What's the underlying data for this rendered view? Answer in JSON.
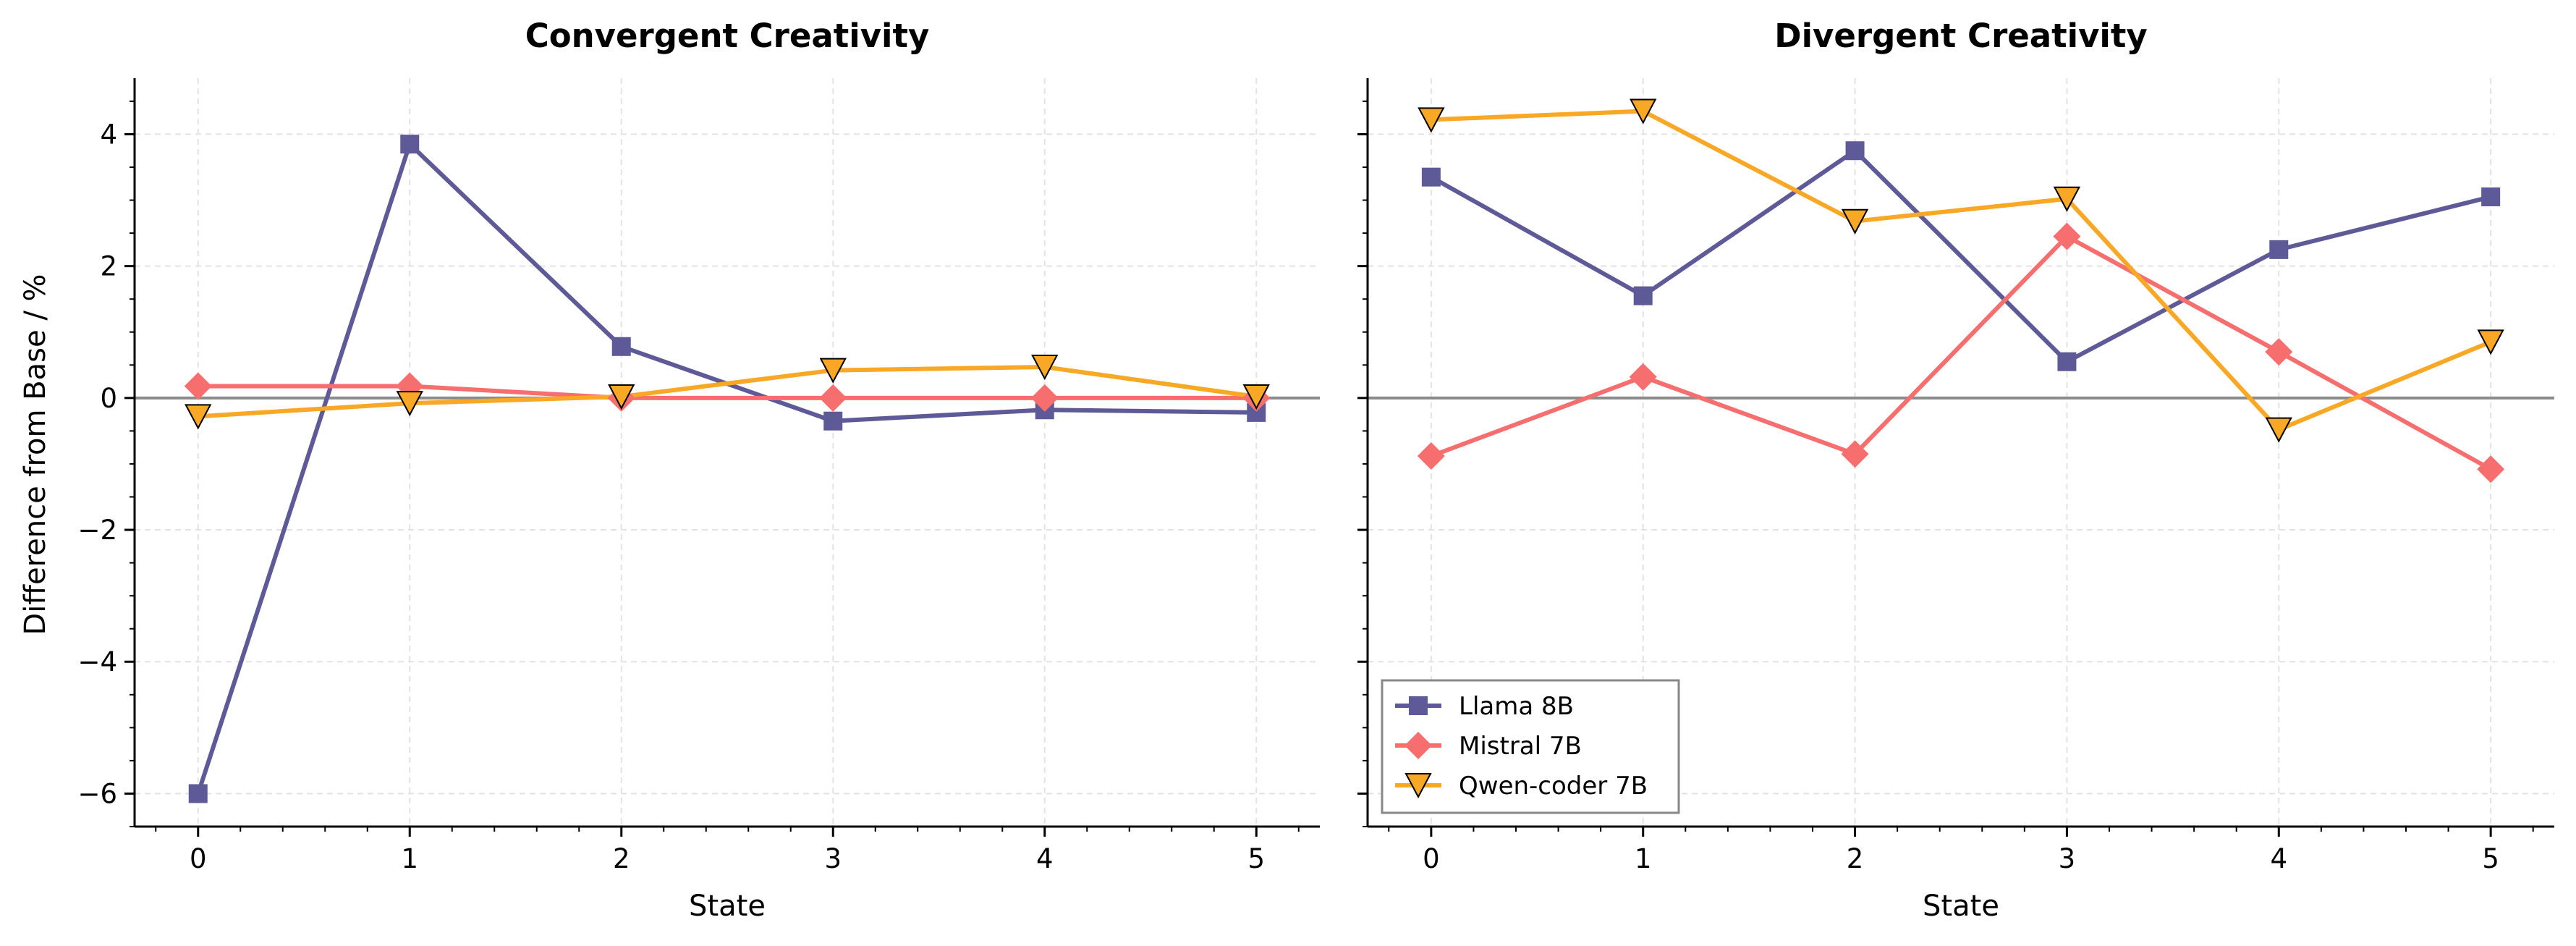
{
  "chart_data": [
    {
      "type": "line",
      "title": "Convergent Creativity",
      "xlabel": "State",
      "ylabel": "Difference from Base / %",
      "x": [
        0,
        1,
        2,
        3,
        4,
        5
      ],
      "xticks": [
        "0",
        "1",
        "2",
        "3",
        "4",
        "5"
      ],
      "yticks": [
        "−6",
        "−4",
        "−2",
        "0",
        "2",
        "4"
      ],
      "ytick_values": [
        -6,
        -4,
        -2,
        0,
        2,
        4
      ],
      "xlim": [
        -0.3,
        5.3
      ],
      "ylim": [
        -6.5,
        4.85
      ],
      "grid": true,
      "zero_line": true,
      "series": [
        {
          "name": "Llama 8B",
          "marker": "square",
          "color": "#5e5a97",
          "values": [
            -6.0,
            3.85,
            0.78,
            -0.35,
            -0.18,
            -0.22
          ]
        },
        {
          "name": "Mistral 7B",
          "marker": "diamond",
          "color": "#f66e6e",
          "values": [
            0.18,
            0.18,
            0.0,
            0.0,
            0.0,
            0.0
          ]
        },
        {
          "name": "Qwen-coder 7B",
          "marker": "triangle-down",
          "color": "#f9a825",
          "values": [
            -0.28,
            -0.08,
            0.02,
            0.42,
            0.47,
            0.02
          ]
        }
      ]
    },
    {
      "type": "line",
      "title": "Divergent Creativity",
      "xlabel": "State",
      "ylabel": "",
      "x": [
        0,
        1,
        2,
        3,
        4,
        5
      ],
      "xticks": [
        "0",
        "1",
        "2",
        "3",
        "4",
        "5"
      ],
      "yticks": [],
      "ytick_values": [
        -6,
        -4,
        -2,
        0,
        2,
        4
      ],
      "xlim": [
        -0.3,
        5.3
      ],
      "ylim": [
        -6.5,
        4.85
      ],
      "grid": true,
      "zero_line": true,
      "legend": "lower-left",
      "series": [
        {
          "name": "Llama 8B",
          "marker": "square",
          "color": "#5e5a97",
          "values": [
            3.35,
            1.55,
            3.75,
            0.55,
            2.25,
            3.05
          ]
        },
        {
          "name": "Mistral 7B",
          "marker": "diamond",
          "color": "#f66e6e",
          "values": [
            -0.88,
            0.32,
            -0.85,
            2.45,
            0.7,
            -1.08
          ]
        },
        {
          "name": "Qwen-coder 7B",
          "marker": "triangle-down",
          "color": "#f9a825",
          "values": [
            4.22,
            4.35,
            2.68,
            3.02,
            -0.48,
            0.85
          ]
        }
      ]
    }
  ]
}
